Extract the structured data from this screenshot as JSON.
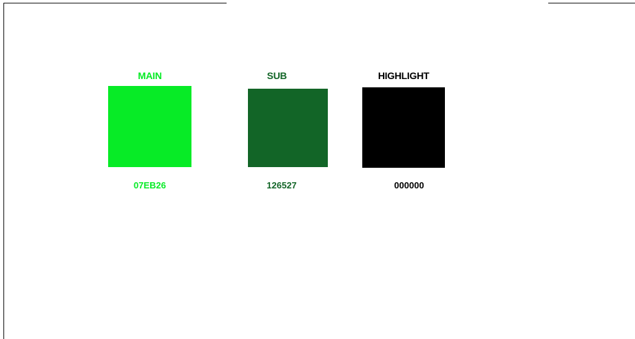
{
  "palette": {
    "main": {
      "label": "MAIN",
      "code": "07EB26",
      "color": "#07EB26",
      "text_color": "#07EB26"
    },
    "sub": {
      "label": "SUB",
      "code": "126527",
      "color": "#126527",
      "text_color": "#126527"
    },
    "highlight": {
      "label": "HIGHLIGHT",
      "code": "000000",
      "color": "#000000",
      "text_color": "#000000"
    }
  }
}
